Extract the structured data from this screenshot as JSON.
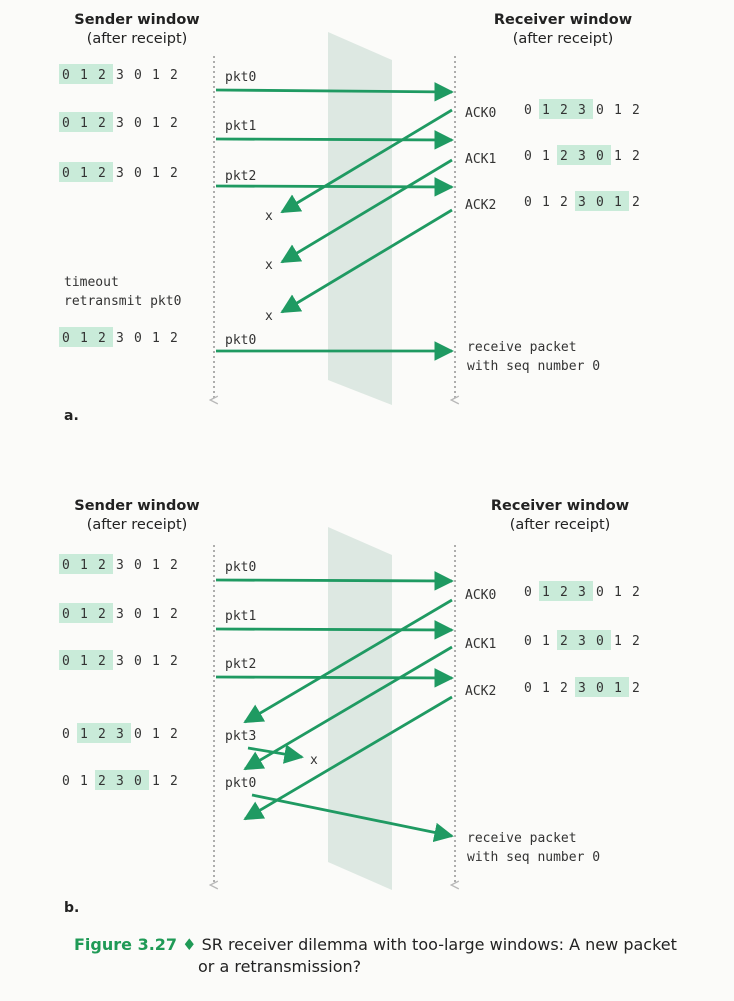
{
  "panel_a": {
    "label": "a.",
    "sender_header": [
      "Sender window",
      "(after receipt)"
    ],
    "receiver_header": [
      "Receiver window",
      "(after receipt)"
    ],
    "sender_rows": [
      {
        "digits": [
          "0",
          "1",
          "2",
          "3",
          "0",
          "1",
          "2"
        ],
        "highlight": [
          0,
          1,
          2
        ],
        "pkt": "pkt0"
      },
      {
        "digits": [
          "0",
          "1",
          "2",
          "3",
          "0",
          "1",
          "2"
        ],
        "highlight": [
          0,
          1,
          2
        ],
        "pkt": "pkt1"
      },
      {
        "digits": [
          "0",
          "1",
          "2",
          "3",
          "0",
          "1",
          "2"
        ],
        "highlight": [
          0,
          1,
          2
        ],
        "pkt": "pkt2"
      },
      {
        "digits": [
          "0",
          "1",
          "2",
          "3",
          "0",
          "1",
          "2"
        ],
        "highlight": [
          0,
          1,
          2
        ],
        "pkt": "pkt0"
      }
    ],
    "timeout_lines": [
      "timeout",
      "retransmit pkt0"
    ],
    "receiver_rows": [
      {
        "ack": "ACK0",
        "digits": [
          "0",
          "1",
          "2",
          "3",
          "0",
          "1",
          "2"
        ],
        "highlight": [
          1,
          2,
          3
        ]
      },
      {
        "ack": "ACK1",
        "digits": [
          "0",
          "1",
          "2",
          "3",
          "0",
          "1",
          "2"
        ],
        "highlight": [
          2,
          3,
          4
        ]
      },
      {
        "ack": "ACK2",
        "digits": [
          "0",
          "1",
          "2",
          "3",
          "0",
          "1",
          "2"
        ],
        "highlight": [
          3,
          4,
          5
        ]
      }
    ],
    "lost_marks": [
      "x",
      "x",
      "x"
    ],
    "receive_note": [
      "receive packet",
      "with seq number 0"
    ]
  },
  "panel_b": {
    "label": "b.",
    "sender_header": [
      "Sender window",
      "(after receipt)"
    ],
    "receiver_header": [
      "Receiver window",
      "(after receipt)"
    ],
    "sender_rows": [
      {
        "digits": [
          "0",
          "1",
          "2",
          "3",
          "0",
          "1",
          "2"
        ],
        "highlight": [
          0,
          1,
          2
        ],
        "pkt": "pkt0"
      },
      {
        "digits": [
          "0",
          "1",
          "2",
          "3",
          "0",
          "1",
          "2"
        ],
        "highlight": [
          0,
          1,
          2
        ],
        "pkt": "pkt1"
      },
      {
        "digits": [
          "0",
          "1",
          "2",
          "3",
          "0",
          "1",
          "2"
        ],
        "highlight": [
          0,
          1,
          2
        ],
        "pkt": "pkt2"
      },
      {
        "digits": [
          "0",
          "1",
          "2",
          "3",
          "0",
          "1",
          "2"
        ],
        "highlight": [
          1,
          2,
          3
        ],
        "pkt": "pkt3"
      },
      {
        "digits": [
          "0",
          "1",
          "2",
          "3",
          "0",
          "1",
          "2"
        ],
        "highlight": [
          2,
          3,
          4
        ],
        "pkt": "pkt0"
      }
    ],
    "receiver_rows": [
      {
        "ack": "ACK0",
        "digits": [
          "0",
          "1",
          "2",
          "3",
          "0",
          "1",
          "2"
        ],
        "highlight": [
          1,
          2,
          3
        ]
      },
      {
        "ack": "ACK1",
        "digits": [
          "0",
          "1",
          "2",
          "3",
          "0",
          "1",
          "2"
        ],
        "highlight": [
          2,
          3,
          4
        ]
      },
      {
        "ack": "ACK2",
        "digits": [
          "0",
          "1",
          "2",
          "3",
          "0",
          "1",
          "2"
        ],
        "highlight": [
          3,
          4,
          5
        ]
      }
    ],
    "lost_marks": [
      "x"
    ],
    "receive_note": [
      "receive packet",
      "with seq number 0"
    ]
  },
  "caption": {
    "figure_number": "Figure 3.27",
    "separator": "♦",
    "text_line1": "SR receiver dilemma with too-large windows: A new packet",
    "text_line2": "or a retransmission?"
  },
  "colors": {
    "arrow": "#1f9a62",
    "highlight": "#c9ebd9",
    "curtain": "#d3e2da",
    "timeline": "#9a9a9a"
  }
}
